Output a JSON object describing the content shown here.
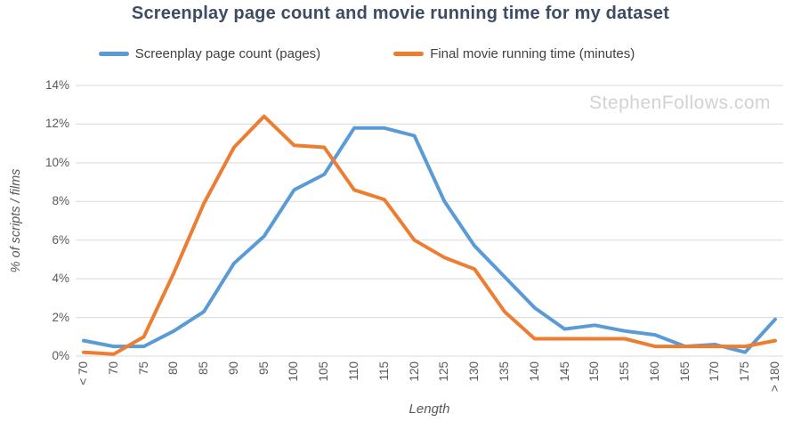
{
  "title": "Screenplay page count and movie running time for my dataset",
  "watermark": "StephenFollows.com",
  "legend": [
    {
      "label": "Screenplay page count (pages)",
      "color": "#5B9BD5"
    },
    {
      "label": "Final movie running time (minutes)",
      "color": "#ED7D31"
    }
  ],
  "colors": {
    "grid": "#D9D9D9",
    "tick_text": "#595959",
    "title_text": "#3D4C63",
    "watermark_text": "#D2D2D2",
    "series_blue": "#5B9BD5",
    "series_orange": "#ED7D31"
  },
  "chart_data": {
    "type": "line",
    "title": "Screenplay page count and movie running time for my dataset",
    "xlabel": "Length",
    "ylabel": "% of scripts / films",
    "ylim": [
      0,
      14
    ],
    "ytick_labels": [
      "0%",
      "2%",
      "4%",
      "6%",
      "8%",
      "10%",
      "12%",
      "14%"
    ],
    "grid": true,
    "legend_position": "top",
    "categories": [
      "< 70",
      "70",
      "75",
      "80",
      "85",
      "90",
      "95",
      "100",
      "105",
      "110",
      "115",
      "120",
      "125",
      "130",
      "135",
      "140",
      "145",
      "150",
      "155",
      "160",
      "165",
      "170",
      "175",
      "> 180"
    ],
    "series": [
      {
        "name": "Screenplay page count (pages)",
        "color": "#5B9BD5",
        "values": [
          0.8,
          0.5,
          0.5,
          1.3,
          2.3,
          4.8,
          6.2,
          8.6,
          9.4,
          11.8,
          11.8,
          11.4,
          8.0,
          5.7,
          4.1,
          2.5,
          1.4,
          1.6,
          1.3,
          1.1,
          0.5,
          0.6,
          0.2,
          1.9
        ]
      },
      {
        "name": "Final movie running time (minutes)",
        "color": "#ED7D31",
        "values": [
          0.2,
          0.1,
          1.0,
          4.3,
          7.9,
          10.8,
          12.4,
          10.9,
          10.8,
          8.6,
          8.1,
          6.0,
          5.1,
          4.5,
          2.3,
          0.9,
          0.9,
          0.9,
          0.9,
          0.5,
          0.5,
          0.5,
          0.5,
          0.8
        ]
      }
    ]
  }
}
